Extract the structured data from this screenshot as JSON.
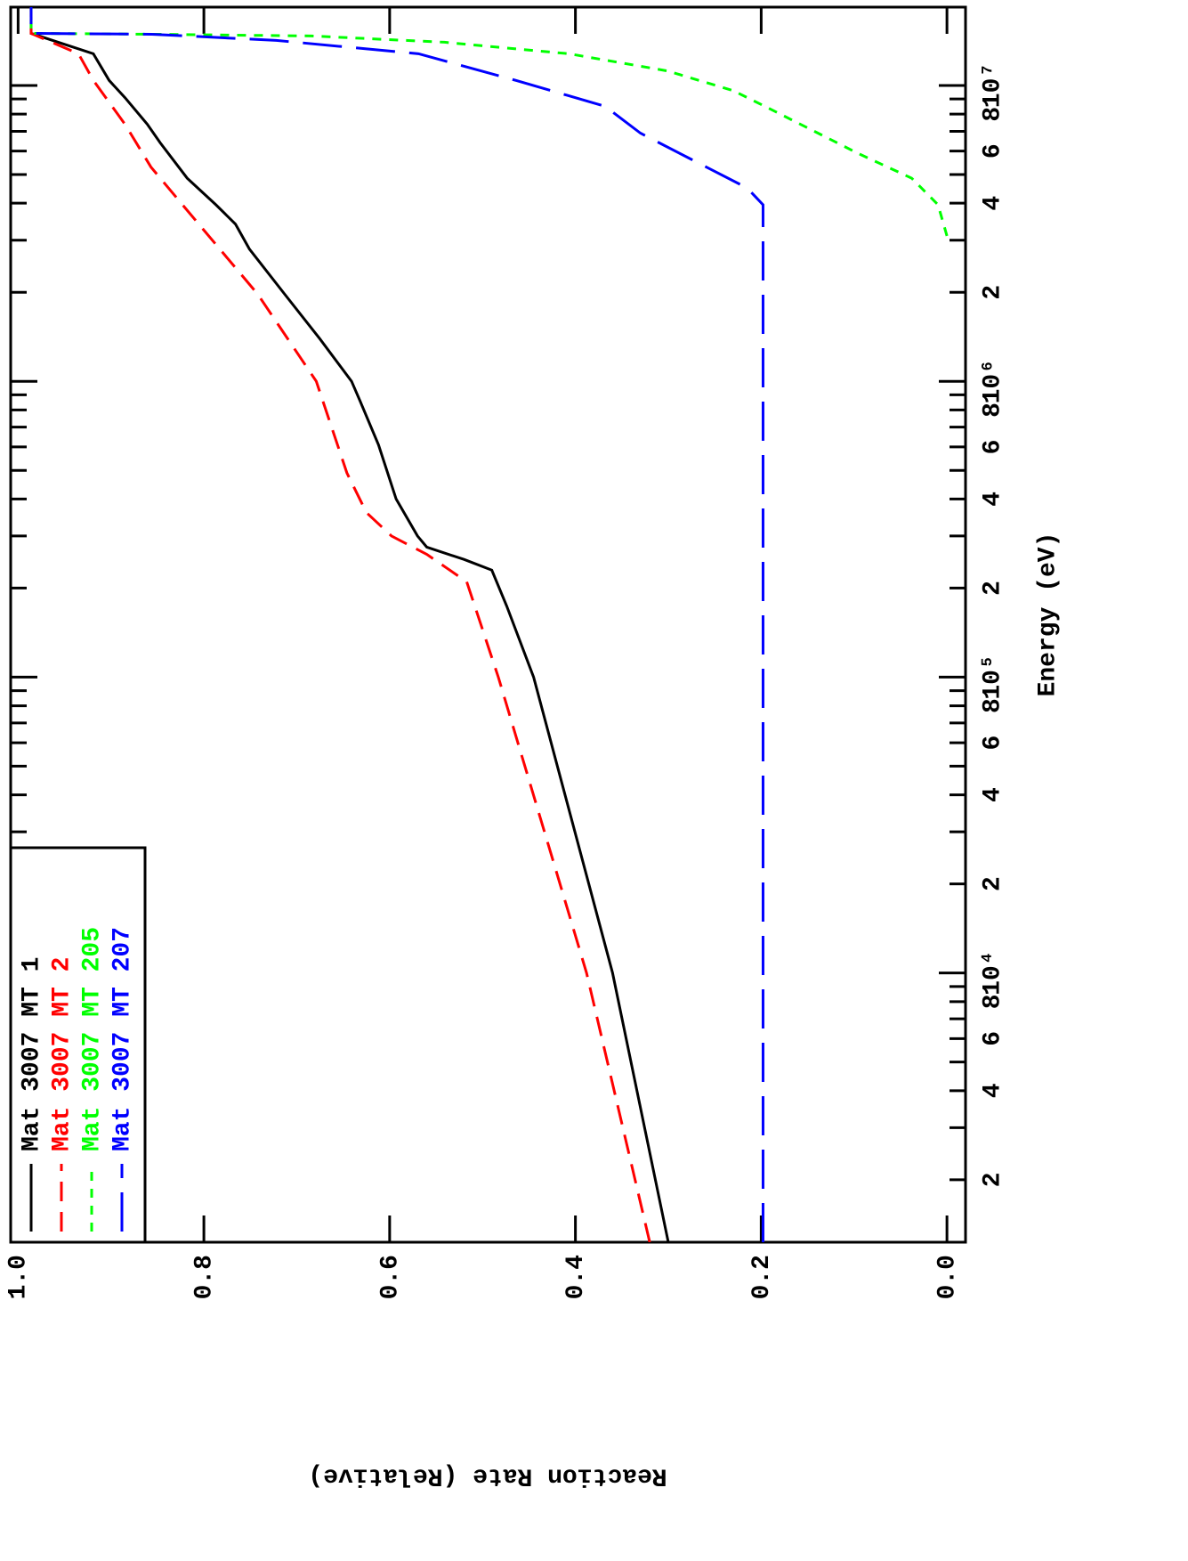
{
  "chart_data": {
    "type": "line",
    "xlabel": "Energy (eV)",
    "ylabel": "Reaction Rate (Relative)",
    "xscale": "log",
    "xlim": [
      1230,
      18400000
    ],
    "ylim": [
      -0.02,
      1.008
    ],
    "xticks": [
      {
        "value": 2000,
        "label": "2"
      },
      {
        "value": 4000,
        "label": "4"
      },
      {
        "value": 6000,
        "label": "6"
      },
      {
        "value": 8000,
        "label": "8"
      },
      {
        "value": 10000,
        "label": "10⁴"
      },
      {
        "value": 20000,
        "label": "2"
      },
      {
        "value": 40000,
        "label": "4"
      },
      {
        "value": 60000,
        "label": "6"
      },
      {
        "value": 80000,
        "label": "8"
      },
      {
        "value": 100000,
        "label": "10⁵"
      },
      {
        "value": 200000,
        "label": "2"
      },
      {
        "value": 400000,
        "label": "4"
      },
      {
        "value": 600000,
        "label": "6"
      },
      {
        "value": 800000,
        "label": "8"
      },
      {
        "value": 1000000,
        "label": "10⁶"
      },
      {
        "value": 2000000,
        "label": "2"
      },
      {
        "value": 4000000,
        "label": "4"
      },
      {
        "value": 6000000,
        "label": "6"
      },
      {
        "value": 8000000,
        "label": "8"
      },
      {
        "value": 10000000,
        "label": "10⁷"
      }
    ],
    "xminorticks": [
      3000,
      5000,
      7000,
      9000,
      30000,
      50000,
      70000,
      90000,
      300000,
      500000,
      700000,
      900000,
      3000000,
      5000000,
      7000000,
      9000000
    ],
    "yticks": [
      {
        "value": 0,
        "label": "0.0"
      },
      0.2,
      0.4,
      0.6,
      0.8,
      {
        "value": 1,
        "label": "1.0"
      }
    ],
    "legend": "upper left",
    "series": [
      {
        "name": "Mat 3007 MT 1",
        "color": "#000000",
        "dash": "solid",
        "x": [
          1230,
          10000,
          100000,
          174000,
          230000,
          250000,
          275000,
          300000,
          400000,
          610000,
          860000,
          1000000,
          1390000,
          1970000,
          2800000,
          3400000,
          3950000,
          4860000,
          6400000,
          7400000,
          9100000,
          10400000,
          12800000,
          15000000,
          18400000
        ],
        "values": [
          0.3,
          0.36,
          0.445,
          0.474,
          0.49,
          0.52,
          0.56,
          0.57,
          0.593,
          0.612,
          0.632,
          0.641,
          0.675,
          0.713,
          0.751,
          0.766,
          0.787,
          0.818,
          0.847,
          0.861,
          0.885,
          0.902,
          0.919,
          0.986,
          0.986
        ]
      },
      {
        "name": "Mat 3007 MT 2",
        "color": "#ff0000",
        "dash": "dashed",
        "x": [
          1230,
          10000,
          100000,
          210000,
          260000,
          300000,
          360000,
          490000,
          1000000,
          1970000,
          3950000,
          5300000,
          7400000,
          10400000,
          12800000,
          15000000,
          18400000
        ],
        "values": [
          0.32,
          0.388,
          0.483,
          0.517,
          0.56,
          0.598,
          0.625,
          0.646,
          0.679,
          0.742,
          0.823,
          0.857,
          0.885,
          0.919,
          0.935,
          0.986,
          0.986
        ]
      },
      {
        "name": "Mat 3007 MT 205",
        "color": "#00ff00",
        "dash": "dotted",
        "x": [
          3100000,
          3950000,
          4860000,
          5900000,
          7400000,
          8500000,
          9600000,
          11200000,
          12800000,
          14000000,
          14700000,
          14900000,
          15000000,
          18400000
        ],
        "values": [
          0,
          0.0096,
          0.038,
          0.096,
          0.158,
          0.196,
          0.23,
          0.301,
          0.407,
          0.541,
          0.684,
          0.856,
          0.986,
          0.986
        ]
      },
      {
        "name": "Mat 3007 MT 207",
        "color": "#0000ff",
        "dash": "longdash",
        "x": [
          1230,
          10000,
          100000,
          1000000,
          3950000,
          4500000,
          5200000,
          6900000,
          8500000,
          10400000,
          12800000,
          14200000,
          14900000,
          15000000,
          18400000
        ],
        "values": [
          0.198,
          0.198,
          0.198,
          0.198,
          0.198,
          0.215,
          0.254,
          0.33,
          0.368,
          0.464,
          0.569,
          0.722,
          0.856,
          0.986,
          0.986
        ]
      }
    ]
  }
}
